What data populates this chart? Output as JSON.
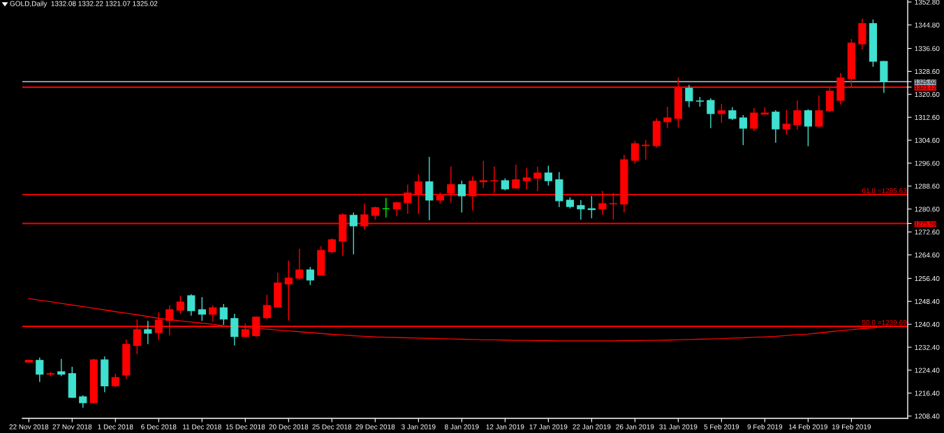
{
  "chart_data": {
    "type": "candlestick",
    "title": "GOLD,Daily  1332.08 1332.22 1321.07 1325.02",
    "categories": [
      "22 Nov 2018",
      null,
      null,
      null,
      "27 Nov 2018",
      null,
      null,
      null,
      "1 Dec 2018",
      null,
      null,
      null,
      "6 Dec 2018",
      null,
      null,
      null,
      "11 Dec 2018",
      null,
      null,
      null,
      "15 Dec 2018",
      null,
      null,
      null,
      "20 Dec 2018",
      null,
      null,
      null,
      "25 Dec 2018",
      null,
      null,
      null,
      "29 Dec 2018",
      null,
      null,
      null,
      "3 Jan 2019",
      null,
      null,
      null,
      "8 Jan 2019",
      null,
      null,
      null,
      "12 Jan 2019",
      null,
      null,
      null,
      "17 Jan 2019",
      null,
      null,
      null,
      "22 Jan 2019",
      null,
      null,
      null,
      "26 Jan 2019",
      null,
      null,
      null,
      "31 Jan 2019",
      null,
      null,
      null,
      "5 Feb 2019",
      null,
      null,
      null,
      "9 Feb 2019",
      null,
      null,
      null,
      "14 Feb 2019",
      null,
      null,
      null,
      "19 Feb 2019",
      null,
      null,
      null
    ],
    "ohlc": [
      [
        1227.2,
        1228.0,
        1227.1,
        1227.9
      ],
      [
        1227.8,
        1228.8,
        1220.3,
        1223.0
      ],
      [
        1223.0,
        1223.8,
        1222.3,
        1223.2
      ],
      [
        1223.9,
        1228.3,
        1222.3,
        1223.0
      ],
      [
        1223.2,
        1225.6,
        1214.7,
        1214.9
      ],
      [
        1215.1,
        1215.6,
        1211.3,
        1213.0
      ],
      [
        1213.0,
        1228.4,
        1212.7,
        1228.0
      ],
      [
        1228.0,
        1229.2,
        1216.7,
        1218.9
      ],
      [
        1218.9,
        1223.2,
        1218.4,
        1221.9
      ],
      [
        1222.7,
        1235.1,
        1221.3,
        1233.4
      ],
      [
        1233.0,
        1242.1,
        1230.0,
        1238.5
      ],
      [
        1238.5,
        1241.6,
        1233.5,
        1237.3
      ],
      [
        1237.5,
        1244.6,
        1234.9,
        1241.9
      ],
      [
        1241.7,
        1247.0,
        1236.6,
        1245.5
      ],
      [
        1245.3,
        1250.4,
        1244.1,
        1248.2
      ],
      [
        1250.4,
        1250.9,
        1243.4,
        1245.1
      ],
      [
        1245.5,
        1249.9,
        1241.6,
        1243.9
      ],
      [
        1243.9,
        1247.0,
        1241.2,
        1246.2
      ],
      [
        1246.2,
        1247.5,
        1240.2,
        1242.2
      ],
      [
        1242.4,
        1244.1,
        1233.0,
        1236.1
      ],
      [
        1236.1,
        1240.7,
        1235.9,
        1238.5
      ],
      [
        1236.4,
        1243.2,
        1235.9,
        1242.9
      ],
      [
        1242.7,
        1250.7,
        1242.2,
        1247.0
      ],
      [
        1246.4,
        1258.4,
        1246.4,
        1254.8
      ],
      [
        1254.5,
        1262.6,
        1241.7,
        1256.5
      ],
      [
        1256.5,
        1266.7,
        1256.0,
        1259.4
      ],
      [
        1259.4,
        1260.4,
        1254.1,
        1255.8
      ],
      [
        1257.5,
        1267.7,
        1257.5,
        1266.2
      ],
      [
        1265.7,
        1270.4,
        1265.2,
        1269.9
      ],
      [
        1269.4,
        1279.1,
        1264.3,
        1278.6
      ],
      [
        1278.4,
        1279.4,
        1264.8,
        1274.7
      ],
      [
        1274.7,
        1282.5,
        1273.5,
        1278.6
      ],
      [
        1278.4,
        1281.4,
        1276.9,
        1281.1
      ],
      [
        1280.7,
        1284.5,
        1277.7,
        1280.7
      ],
      [
        1280.6,
        1283.2,
        1278.1,
        1282.8
      ],
      [
        1282.8,
        1289.1,
        1278.9,
        1286.2
      ],
      [
        1285.7,
        1292.7,
        1278.9,
        1290.1
      ],
      [
        1290.1,
        1298.8,
        1276.7,
        1283.7
      ],
      [
        1283.7,
        1286.4,
        1282.5,
        1285.2
      ],
      [
        1286.2,
        1295.4,
        1282.8,
        1289.1
      ],
      [
        1289.1,
        1290.5,
        1279.4,
        1285.2
      ],
      [
        1285.2,
        1292.0,
        1280.1,
        1290.3
      ],
      [
        1290.1,
        1297.4,
        1287.9,
        1290.5
      ],
      [
        1290.4,
        1295.4,
        1286.2,
        1290.5
      ],
      [
        1290.5,
        1291.3,
        1287.1,
        1287.6
      ],
      [
        1287.9,
        1296.1,
        1287.6,
        1290.8
      ],
      [
        1290.5,
        1294.9,
        1287.4,
        1291.5
      ],
      [
        1291.3,
        1295.4,
        1286.9,
        1293.2
      ],
      [
        1293.2,
        1295.7,
        1288.8,
        1290.5
      ],
      [
        1290.8,
        1293.5,
        1281.3,
        1283.5
      ],
      [
        1283.7,
        1284.7,
        1280.8,
        1281.5
      ],
      [
        1281.8,
        1283.7,
        1276.9,
        1280.6
      ],
      [
        1280.7,
        1285.2,
        1277.4,
        1280.4
      ],
      [
        1280.6,
        1286.9,
        1278.6,
        1282.5
      ],
      [
        1282.4,
        1286.2,
        1276.9,
        1282.5
      ],
      [
        1282.3,
        1299.5,
        1279.4,
        1297.8
      ],
      [
        1297.6,
        1304.4,
        1296.4,
        1303.4
      ],
      [
        1302.7,
        1304.7,
        1297.8,
        1302.9
      ],
      [
        1302.7,
        1312.2,
        1302.0,
        1311.2
      ],
      [
        1311.0,
        1316.3,
        1308.8,
        1312.4
      ],
      [
        1312.2,
        1326.5,
        1309.0,
        1322.7
      ],
      [
        1322.7,
        1323.9,
        1316.1,
        1318.3
      ],
      [
        1318.3,
        1319.7,
        1316.3,
        1318.2
      ],
      [
        1318.5,
        1319.2,
        1308.8,
        1313.9
      ],
      [
        1313.9,
        1317.3,
        1310.7,
        1314.9
      ],
      [
        1314.9,
        1316.1,
        1311.7,
        1312.2
      ],
      [
        1312.4,
        1313.4,
        1302.9,
        1308.8
      ],
      [
        1308.8,
        1315.8,
        1307.8,
        1314.1
      ],
      [
        1313.7,
        1316.1,
        1313.7,
        1314.1
      ],
      [
        1314.4,
        1315.1,
        1303.7,
        1308.5
      ],
      [
        1308.5,
        1315.1,
        1306.6,
        1310.2
      ],
      [
        1310.0,
        1318.5,
        1308.3,
        1314.9
      ],
      [
        1314.9,
        1315.4,
        1302.5,
        1309.5
      ],
      [
        1309.5,
        1320.2,
        1309.0,
        1314.9
      ],
      [
        1314.9,
        1322.9,
        1314.4,
        1321.7
      ],
      [
        1318.5,
        1328.0,
        1317.1,
        1326.3
      ],
      [
        1326.1,
        1339.9,
        1322.9,
        1338.5
      ],
      [
        1338.2,
        1347.0,
        1336.3,
        1345.3
      ],
      [
        1345.3,
        1346.7,
        1330.2,
        1332.1
      ],
      [
        1332.08,
        1332.22,
        1321.07,
        1325.02
      ]
    ],
    "colors": [
      "#ff0000",
      "#40e0d0",
      "#ff0000",
      "#40e0d0",
      "#40e0d0",
      "#40e0d0",
      "#ff0000",
      "#40e0d0",
      "#ff0000",
      "#ff0000",
      "#ff0000",
      "#40e0d0",
      "#ff0000",
      "#ff0000",
      "#ff0000",
      "#40e0d0",
      "#40e0d0",
      "#ff0000",
      "#40e0d0",
      "#40e0d0",
      "#ff0000",
      "#ff0000",
      "#ff0000",
      "#ff0000",
      "#ff0000",
      "#ff0000",
      "#40e0d0",
      "#ff0000",
      "#ff0000",
      "#ff0000",
      "#40e0d0",
      "#ff0000",
      "#ff0000",
      "#00ff00",
      "#ff0000",
      "#ff0000",
      "#ff0000",
      "#40e0d0",
      "#ff0000",
      "#ff0000",
      "#40e0d0",
      "#ff0000",
      "#ff0000",
      "#ff0000",
      "#40e0d0",
      "#ff0000",
      "#ff0000",
      "#ff0000",
      "#40e0d0",
      "#40e0d0",
      "#40e0d0",
      "#40e0d0",
      "#40e0d0",
      "#ff0000",
      "#ff0000",
      "#ff0000",
      "#ff0000",
      "#ff0000",
      "#ff0000",
      "#ff0000",
      "#ff0000",
      "#40e0d0",
      "#40e0d0",
      "#40e0d0",
      "#ff0000",
      "#40e0d0",
      "#40e0d0",
      "#ff0000",
      "#ff0000",
      "#40e0d0",
      "#ff0000",
      "#ff0000",
      "#40e0d0",
      "#ff0000",
      "#ff0000",
      "#ff0000",
      "#ff0000",
      "#ff0000",
      "#40e0d0",
      "#40e0d0"
    ],
    "series": [
      {
        "type": "line",
        "color": "#ff0000",
        "values": [
          1249.4,
          1248.8,
          1248.3,
          1247.7,
          1247.1,
          1246.6,
          1246.0,
          1245.4,
          1244.8,
          1244.3,
          1243.7,
          1243.1,
          1242.5,
          1242.0,
          1241.6,
          1241.2,
          1240.8,
          1240.4,
          1239.9,
          1239.6,
          1239.3,
          1239.0,
          1238.7,
          1238.4,
          1238.1,
          1237.8,
          1237.5,
          1237.2,
          1236.9,
          1236.7,
          1236.4,
          1236.2,
          1236.0,
          1235.9,
          1235.8,
          1235.7,
          1235.6,
          1235.5,
          1235.4,
          1235.3,
          1235.2,
          1235.1,
          1235.0,
          1235.0,
          1234.9,
          1234.8,
          1234.8,
          1234.7,
          1234.7,
          1234.6,
          1234.6,
          1234.6,
          1234.6,
          1234.6,
          1234.6,
          1234.7,
          1234.7,
          1234.8,
          1234.8,
          1234.9,
          1235.0,
          1235.1,
          1235.2,
          1235.3,
          1235.4,
          1235.6,
          1235.7,
          1235.9,
          1236.0,
          1236.2,
          1236.5,
          1236.8,
          1237.0,
          1237.4,
          1237.8,
          1238.2,
          1238.5,
          1238.9,
          1239.2,
          1239.6
        ]
      }
    ],
    "ylim": [
      1207.6,
      1353.5
    ],
    "yticks": [
      {
        "value": 1208.4,
        "label": "1208.40"
      },
      {
        "value": 1216.4,
        "label": "1216.40"
      },
      {
        "value": 1224.4,
        "label": "1224.40"
      },
      {
        "value": 1232.4,
        "label": "1232.40"
      },
      {
        "value": 1240.4,
        "label": "1240.40"
      },
      {
        "value": 1248.4,
        "label": "1248.40"
      },
      {
        "value": 1256.4,
        "label": "1256.40"
      },
      {
        "value": 1264.6,
        "label": "1264.60"
      },
      {
        "value": 1272.6,
        "label": "1272.60"
      },
      1275.58,
      {
        "value": 1280.6,
        "label": "1280.60"
      },
      {
        "value": 1288.6,
        "label": "1288.60"
      },
      {
        "value": 1296.6,
        "label": "1296.60"
      },
      {
        "value": 1304.6,
        "label": "1304.60"
      },
      {
        "value": 1312.6,
        "label": "1312.60"
      },
      {
        "value": 1320.6,
        "label": "1320.60"
      },
      1323.12,
      1325.02,
      {
        "value": 1328.6,
        "label": "1328.60"
      },
      {
        "value": 1336.6,
        "label": "1336.60"
      },
      {
        "value": 1344.8,
        "label": "1344.80"
      },
      {
        "value": 1352.8,
        "label": "1352.80"
      }
    ],
    "ref_lines": [
      {
        "axis": "y",
        "value": 1325.02,
        "color": "#a0a8b4"
      },
      {
        "axis": "y",
        "value": 1323.12,
        "color": "#ff0000"
      },
      {
        "axis": "y",
        "value": 1285.63,
        "label": "61.8 =1285.63",
        "color": "#ff0000"
      },
      {
        "axis": "y",
        "value": 1275.58,
        "color": "#ff0000"
      },
      {
        "axis": "y",
        "value": 1239.69,
        "label": "50.0 =1239.69",
        "color": "#ff0000"
      }
    ]
  }
}
